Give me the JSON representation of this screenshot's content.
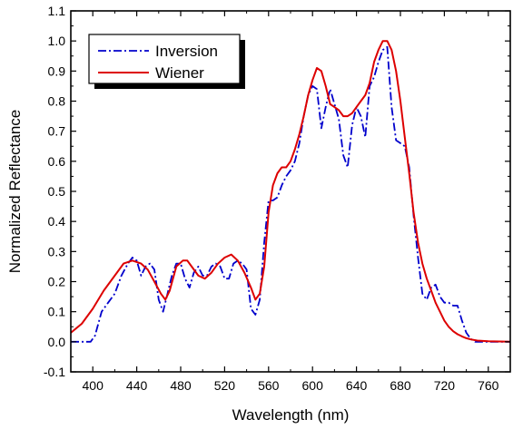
{
  "chart_data": {
    "type": "line",
    "title": "",
    "xlabel": "Wavelength (nm)",
    "ylabel": "Normalized Reflectance",
    "xlim": [
      380,
      780
    ],
    "ylim": [
      -0.1,
      1.1
    ],
    "x_ticks": [
      400,
      440,
      480,
      520,
      560,
      600,
      640,
      680,
      720,
      760
    ],
    "x_tick_labels": [
      "400",
      "440",
      "480",
      "520",
      "560",
      "600",
      "640",
      "680",
      "720",
      "760"
    ],
    "y_ticks": [
      -0.1,
      0.0,
      0.1,
      0.2,
      0.3,
      0.4,
      0.5,
      0.6,
      0.7,
      0.8,
      0.9,
      1.0,
      1.1
    ],
    "y_tick_labels": [
      "-0.1",
      "0.0",
      "0.1",
      "0.2",
      "0.3",
      "0.4",
      "0.5",
      "0.6",
      "0.7",
      "0.8",
      "0.9",
      "1.0",
      "1.1"
    ],
    "grid": false,
    "legend_position": "top-left",
    "series": [
      {
        "name": "Inversion",
        "color": "#0000cc",
        "line_style": "dash-dot",
        "x": [
          380,
          390,
          398,
          402,
          408,
          414,
          420,
          426,
          432,
          436,
          440,
          444,
          448,
          452,
          456,
          460,
          464,
          468,
          472,
          476,
          480,
          484,
          488,
          492,
          496,
          500,
          504,
          508,
          512,
          516,
          520,
          524,
          528,
          532,
          536,
          540,
          544,
          548,
          552,
          556,
          560,
          564,
          568,
          572,
          576,
          580,
          584,
          588,
          592,
          596,
          600,
          604,
          608,
          612,
          616,
          620,
          624,
          628,
          632,
          636,
          640,
          644,
          648,
          652,
          656,
          660,
          664,
          668,
          672,
          676,
          680,
          684,
          688,
          692,
          696,
          700,
          704,
          708,
          712,
          716,
          720,
          724,
          728,
          732,
          736,
          740,
          744,
          748,
          752,
          760,
          770,
          780
        ],
        "y": [
          0.0,
          0.0,
          0.0,
          0.02,
          0.1,
          0.13,
          0.16,
          0.22,
          0.26,
          0.28,
          0.27,
          0.22,
          0.25,
          0.26,
          0.24,
          0.14,
          0.1,
          0.16,
          0.22,
          0.26,
          0.26,
          0.21,
          0.18,
          0.23,
          0.25,
          0.22,
          0.22,
          0.25,
          0.26,
          0.25,
          0.21,
          0.21,
          0.26,
          0.27,
          0.26,
          0.24,
          0.11,
          0.09,
          0.14,
          0.33,
          0.47,
          0.47,
          0.48,
          0.52,
          0.55,
          0.57,
          0.6,
          0.66,
          0.75,
          0.82,
          0.85,
          0.84,
          0.71,
          0.78,
          0.84,
          0.79,
          0.74,
          0.62,
          0.58,
          0.72,
          0.78,
          0.75,
          0.68,
          0.85,
          0.88,
          0.93,
          0.97,
          0.98,
          0.78,
          0.67,
          0.66,
          0.65,
          0.58,
          0.42,
          0.28,
          0.16,
          0.14,
          0.18,
          0.19,
          0.15,
          0.13,
          0.13,
          0.12,
          0.12,
          0.07,
          0.03,
          0.01,
          0.0,
          0.0,
          0.0,
          0.0,
          0.0
        ]
      },
      {
        "name": "Wiener",
        "color": "#dd0000",
        "line_style": "solid",
        "x": [
          380,
          390,
          400,
          410,
          420,
          428,
          436,
          444,
          450,
          456,
          462,
          466,
          470,
          476,
          482,
          486,
          490,
          496,
          502,
          508,
          514,
          520,
          526,
          532,
          538,
          544,
          548,
          552,
          556,
          560,
          564,
          568,
          572,
          576,
          580,
          584,
          588,
          592,
          596,
          600,
          604,
          608,
          612,
          616,
          620,
          624,
          628,
          632,
          636,
          640,
          644,
          648,
          652,
          656,
          660,
          664,
          668,
          672,
          676,
          680,
          684,
          688,
          692,
          696,
          700,
          704,
          708,
          712,
          716,
          720,
          724,
          728,
          732,
          736,
          740,
          744,
          750,
          760,
          770,
          780
        ],
        "y": [
          0.03,
          0.06,
          0.11,
          0.17,
          0.22,
          0.26,
          0.27,
          0.26,
          0.24,
          0.2,
          0.16,
          0.14,
          0.17,
          0.25,
          0.27,
          0.27,
          0.25,
          0.22,
          0.21,
          0.23,
          0.26,
          0.28,
          0.29,
          0.27,
          0.23,
          0.18,
          0.14,
          0.16,
          0.25,
          0.43,
          0.52,
          0.56,
          0.58,
          0.58,
          0.6,
          0.64,
          0.69,
          0.75,
          0.82,
          0.87,
          0.91,
          0.9,
          0.85,
          0.79,
          0.78,
          0.77,
          0.75,
          0.75,
          0.76,
          0.78,
          0.8,
          0.82,
          0.86,
          0.93,
          0.97,
          1.0,
          1.0,
          0.97,
          0.9,
          0.8,
          0.68,
          0.56,
          0.43,
          0.33,
          0.26,
          0.21,
          0.17,
          0.13,
          0.1,
          0.07,
          0.05,
          0.035,
          0.025,
          0.018,
          0.012,
          0.008,
          0.004,
          0.002,
          0.001,
          0.0
        ]
      }
    ]
  }
}
